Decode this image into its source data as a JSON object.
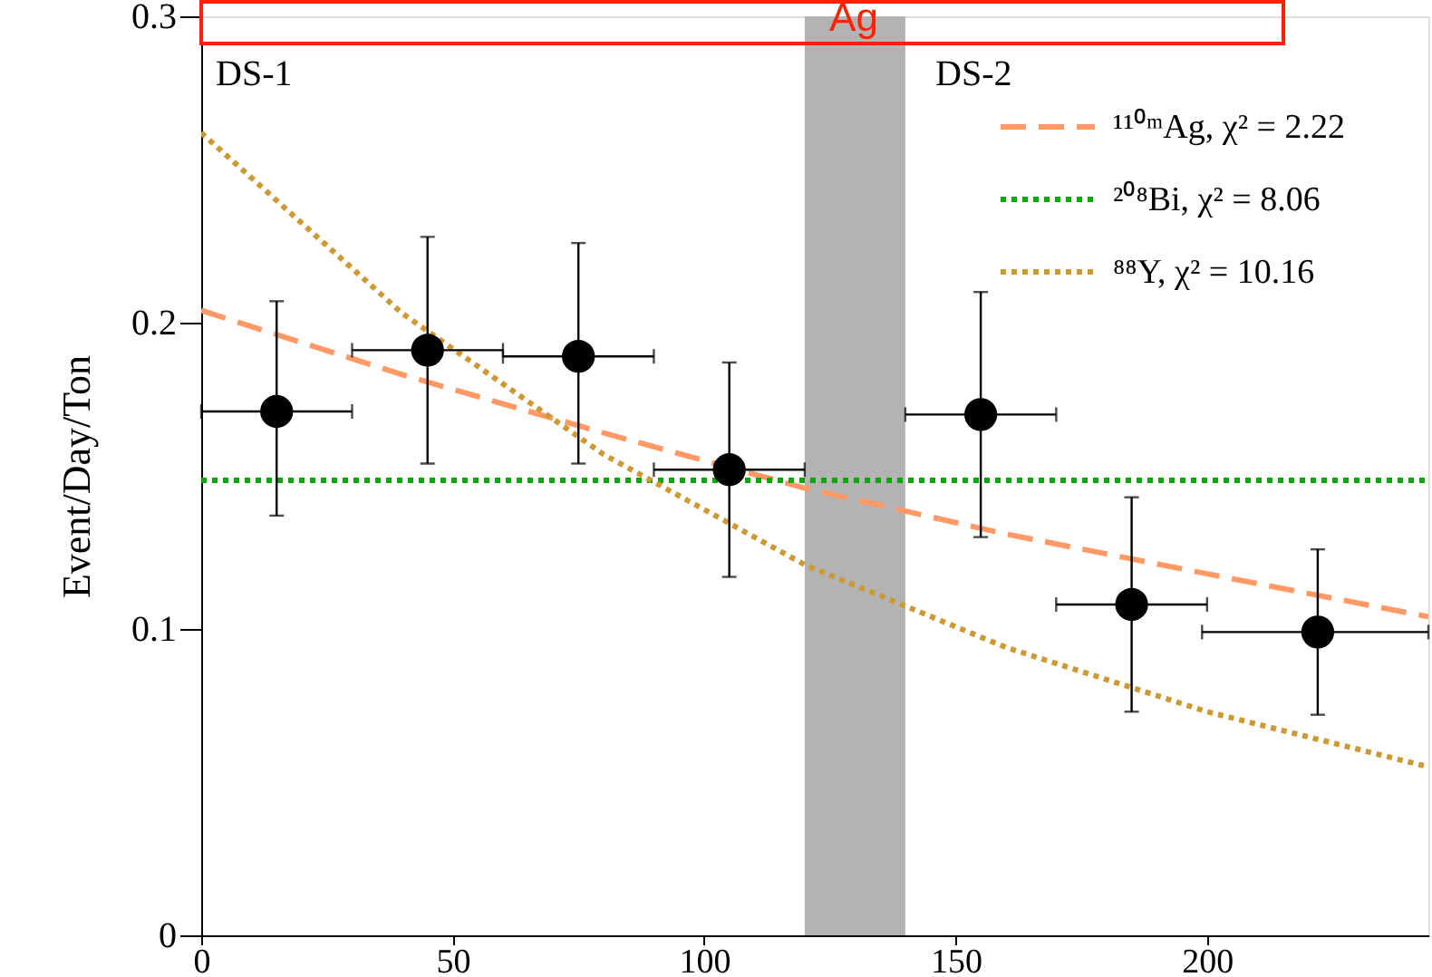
{
  "chart_data": {
    "type": "scatter",
    "ylabel": "Event/Day/Ton",
    "xlim": [
      0,
      244
    ],
    "xticks": [
      0,
      50,
      100,
      150,
      200
    ],
    "ylim": [
      0,
      0.3
    ],
    "yticks": [
      0,
      0.1,
      0.2,
      0.3
    ],
    "grid": false,
    "legend": "top right",
    "bands": [
      {
        "axis": "x",
        "from": 120,
        "to": 140,
        "color": "#b3b3b3"
      }
    ],
    "annotations": [
      "Ag",
      "DS-1",
      "DS-2"
    ],
    "series": [
      {
        "name": "¹¹⁰ᵐAg, χ² = 2.22",
        "type": "line",
        "color": "#ff9966",
        "line_style": "dashed",
        "x": [
          0,
          40,
          80,
          120,
          160,
          200,
          244
        ],
        "values": [
          0.204,
          0.183,
          0.164,
          0.146,
          0.131,
          0.118,
          0.104
        ]
      },
      {
        "name": "²⁰⁸Bi, χ² = 8.06",
        "type": "line",
        "color": "#00aa00",
        "line_style": "dotted",
        "x": [
          0,
          244
        ],
        "values": [
          0.1485,
          0.1485
        ]
      },
      {
        "name": "⁸⁸Y, χ² = 10.16",
        "type": "line",
        "color": "#cc9933",
        "line_style": "dotted",
        "x": [
          0,
          40,
          80,
          120,
          160,
          200,
          244
        ],
        "values": [
          0.262,
          0.203,
          0.157,
          0.121,
          0.094,
          0.073,
          0.055
        ]
      },
      {
        "color": "#000000",
        "marker": "circle",
        "x": [
          15,
          45,
          75,
          105,
          155,
          185,
          222
        ],
        "values": [
          0.171,
          0.191,
          0.189,
          0.152,
          0.17,
          0.108,
          0.099
        ],
        "errors": [
          [
            0.137,
            0.207
          ],
          [
            0.154,
            0.228
          ],
          [
            0.154,
            0.226
          ],
          [
            0.117,
            0.187
          ],
          [
            0.13,
            0.21
          ],
          [
            0.073,
            0.143
          ],
          [
            0.072,
            0.126
          ]
        ],
        "xerrors": [
          [
            0,
            30
          ],
          [
            30,
            60
          ],
          [
            60,
            90
          ],
          [
            90,
            120
          ],
          [
            140,
            170
          ],
          [
            170,
            200
          ],
          [
            199,
            244
          ]
        ]
      }
    ]
  }
}
